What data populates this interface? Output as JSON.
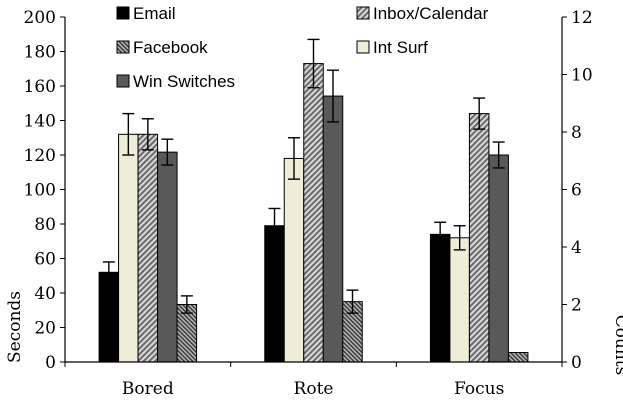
{
  "chart_data": {
    "type": "bar",
    "title": "",
    "categories": [
      "Bored",
      "Rote",
      "Focus"
    ],
    "ylabel": "Seconds",
    "y2label": "Counts",
    "ylim": [
      0,
      200
    ],
    "yticks": [
      0,
      20,
      40,
      60,
      80,
      100,
      120,
      140,
      160,
      180,
      200
    ],
    "y2lim": [
      0,
      12
    ],
    "y2ticks": [
      0,
      2,
      4,
      6,
      8,
      10,
      12
    ],
    "grid": false,
    "legend_placement": "top-left",
    "series": [
      {
        "name": "Email",
        "axis": "left",
        "pattern": "solid",
        "color": "#000000",
        "values": [
          52,
          79,
          74
        ],
        "error": [
          6,
          10,
          7
        ]
      },
      {
        "name": "Int Surf",
        "axis": "left",
        "pattern": "solid",
        "color": "#efedd8",
        "values": [
          132,
          118,
          72
        ],
        "error": [
          12,
          12,
          7
        ]
      },
      {
        "name": "Inbox/Calendar",
        "axis": "left",
        "pattern": "diagonal",
        "color": "#aaaaaa",
        "values": [
          132,
          173,
          144
        ],
        "error": [
          9,
          14,
          9
        ]
      },
      {
        "name": "Win Switches",
        "axis": "right",
        "pattern": "solid",
        "color": "#595959",
        "values": [
          7.3,
          9.25,
          7.2
        ],
        "error": [
          0.45,
          0.9,
          0.45
        ]
      },
      {
        "name": "Facebook",
        "axis": "right",
        "pattern": "diagonal-dense",
        "color": "#777777",
        "values": [
          2.0,
          2.1,
          0.33
        ],
        "error": [
          0.3,
          0.4,
          0.0
        ]
      }
    ],
    "legend": [
      "Email",
      "Inbox/Calendar",
      "Facebook",
      "Int Surf",
      "Win Switches"
    ]
  }
}
